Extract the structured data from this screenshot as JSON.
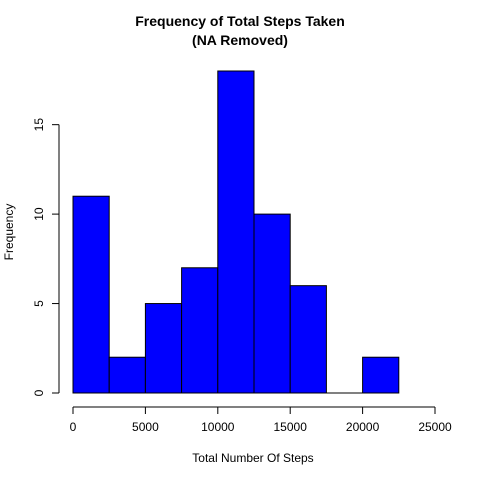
{
  "chart_data": {
    "type": "bar",
    "title": "Frequency of Total Steps Taken",
    "subtitle": "(NA Removed)",
    "xlabel": "Total Number Of Steps",
    "ylabel": "Frequency",
    "bin_edges": [
      0,
      2500,
      5000,
      7500,
      10000,
      12500,
      15000,
      17500,
      20000,
      22500
    ],
    "values": [
      11,
      2,
      5,
      7,
      18,
      10,
      6,
      0,
      2
    ],
    "xlim": [
      0,
      25000
    ],
    "ylim": [
      0,
      18
    ],
    "x_ticks": [
      "0",
      "5000",
      "10000",
      "15000",
      "20000",
      "25000"
    ],
    "y_ticks": [
      "0",
      "5",
      "10",
      "15"
    ],
    "bar_color": "#0000ff",
    "bar_border": "#000000",
    "grid": false,
    "legend": "none"
  }
}
